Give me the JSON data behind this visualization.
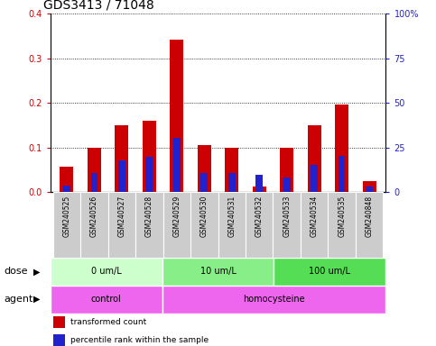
{
  "title": "GDS3413 / 71048",
  "samples": [
    "GSM240525",
    "GSM240526",
    "GSM240527",
    "GSM240528",
    "GSM240529",
    "GSM240530",
    "GSM240531",
    "GSM240532",
    "GSM240533",
    "GSM240534",
    "GSM240535",
    "GSM240848"
  ],
  "transformed_count": [
    0.057,
    0.1,
    0.15,
    0.16,
    0.343,
    0.105,
    0.1,
    0.013,
    0.1,
    0.15,
    0.197,
    0.025
  ],
  "percentile_rank_pct": [
    3.8,
    10.5,
    18.0,
    20.0,
    30.5,
    10.8,
    10.7,
    9.5,
    8.2,
    15.0,
    20.5,
    3.0
  ],
  "bar_color_red": "#CC0000",
  "bar_color_blue": "#2222CC",
  "ylim_left": [
    0,
    0.4
  ],
  "ylim_right": [
    0,
    100
  ],
  "yticks_left": [
    0.0,
    0.1,
    0.2,
    0.3,
    0.4
  ],
  "yticks_right": [
    0,
    25,
    50,
    75,
    100
  ],
  "ytick_labels_right": [
    "0",
    "25",
    "50",
    "75",
    "100%"
  ],
  "dose_groups": [
    {
      "label": "0 um/L",
      "start": 0,
      "end": 4,
      "color": "#CCFFCC"
    },
    {
      "label": "10 um/L",
      "start": 4,
      "end": 8,
      "color": "#88EE88"
    },
    {
      "label": "100 um/L",
      "start": 8,
      "end": 12,
      "color": "#55DD55"
    }
  ],
  "agent_groups": [
    {
      "label": "control",
      "start": 0,
      "end": 4,
      "color": "#EE66EE"
    },
    {
      "label": "homocysteine",
      "start": 4,
      "end": 12,
      "color": "#EE66EE"
    }
  ],
  "legend_items": [
    {
      "label": "transformed count",
      "color": "#CC0000"
    },
    {
      "label": "percentile rank within the sample",
      "color": "#2222CC"
    }
  ],
  "dose_label": "dose",
  "agent_label": "agent",
  "bg_color": "#FFFFFF",
  "plot_bg": "#FFFFFF",
  "sample_bg": "#CCCCCC",
  "grid_linestyle": "dotted",
  "title_fontsize": 10,
  "axis_fontsize": 7,
  "label_fontsize": 8,
  "bar_width": 0.5,
  "blue_bar_width": 0.25
}
